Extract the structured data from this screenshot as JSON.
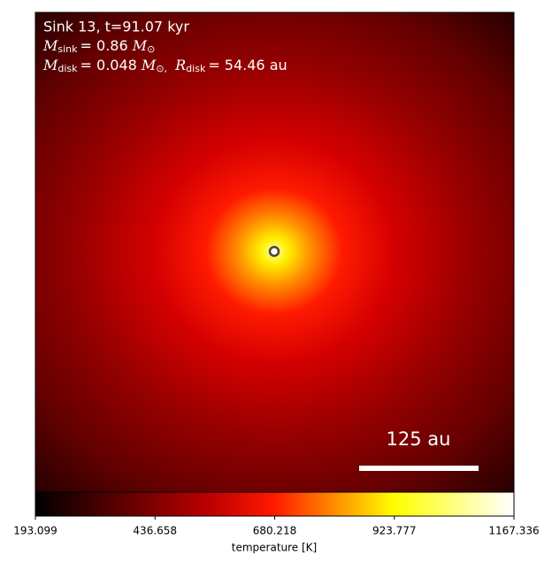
{
  "chart_data": {
    "type": "image",
    "annotations": {
      "line1": "Sink 13, t=91.07 kyr",
      "line2": {
        "symbol": "M",
        "sub": "sink",
        "value": "= 0.86",
        "unit": "M",
        "unit_sub": "⊙"
      },
      "line3": {
        "symbol": "M",
        "sub": "disk",
        "value": "= 0.048",
        "unit": "M",
        "unit_sub": "⊙,",
        "symbol2": "R",
        "sub2": "disk",
        "value2": "= 54.46 au"
      }
    },
    "scale_bar_label": "125 au",
    "colorbar": {
      "label": "temperature [K]",
      "clim": [
        193.099,
        1167.336
      ],
      "ticks": [
        193.099,
        436.658,
        680.218,
        923.777,
        1167.336
      ],
      "cmap": "hot"
    }
  }
}
